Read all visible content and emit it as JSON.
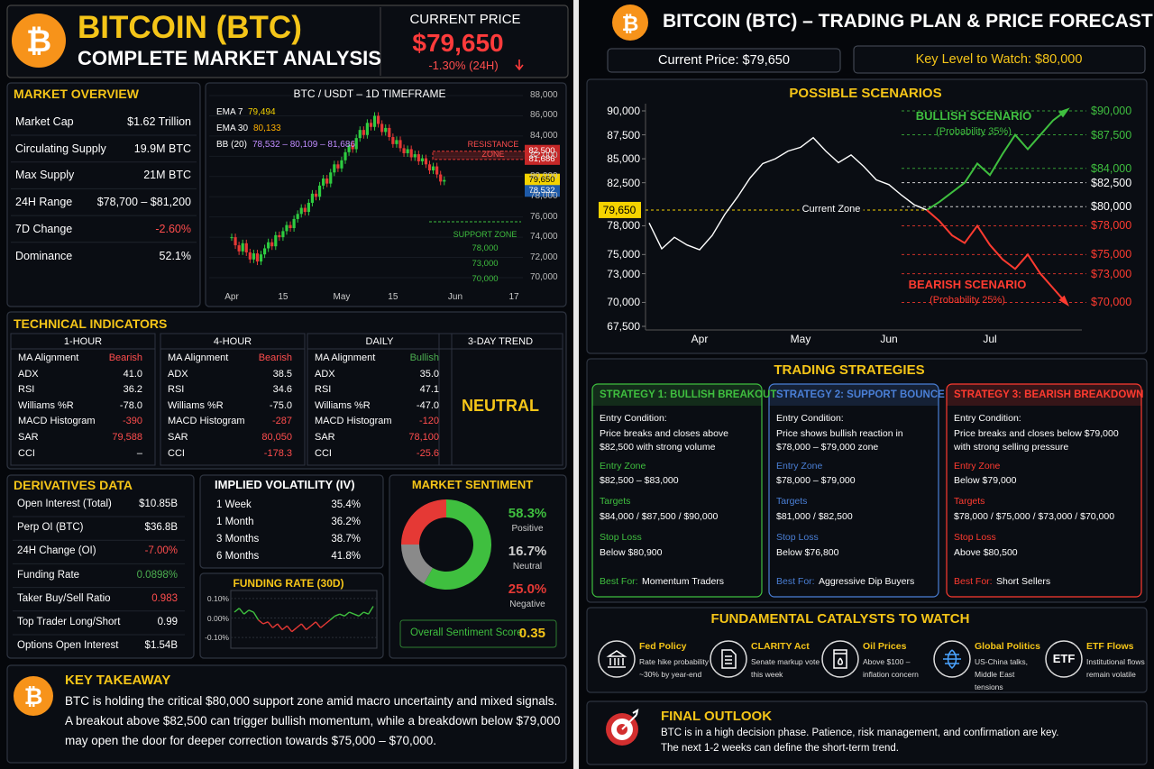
{
  "header": {
    "logo": "₿",
    "title": "BITCOIN (BTC)",
    "subtitle": "COMPLETE MARKET ANALYSIS",
    "price_label": "CURRENT PRICE",
    "price": "$79,650",
    "change": "-1.30% (24H)"
  },
  "market_overview": {
    "title": "MARKET OVERVIEW",
    "rows": [
      {
        "label": "Market Cap",
        "value": "$1.62 Trillion"
      },
      {
        "label": "Circulating Supply",
        "value": "19.9M BTC"
      },
      {
        "label": "Max Supply",
        "value": "21M BTC"
      },
      {
        "label": "24H Range",
        "value": "$78,700 – $81,200"
      },
      {
        "label": "7D Change",
        "value": "-2.60%",
        "color": "#ff4d4d"
      },
      {
        "label": "Dominance",
        "value": "52.1%"
      }
    ]
  },
  "price_chart": {
    "type": "candlestick",
    "title": "BTC / USDT – 1D TIMEFRAME",
    "legend": [
      {
        "label": "EMA 7",
        "value": "79,494",
        "color": "#f5d300"
      },
      {
        "label": "EMA 30",
        "value": "80,133",
        "color": "#ffb000"
      },
      {
        "label": "BB (20)",
        "value": "78,532 – 80,109 – 81,686",
        "color": "#c08cff"
      }
    ],
    "categories": [
      "Apr",
      null,
      null,
      null,
      null,
      null,
      null,
      null,
      null,
      null,
      null,
      null,
      null,
      null,
      "15",
      null,
      null,
      null,
      null,
      null,
      null,
      null,
      null,
      null,
      null,
      null,
      null,
      null,
      null,
      null,
      "May",
      null,
      null,
      null,
      null,
      null,
      null,
      null,
      null,
      null,
      null,
      null,
      null,
      null,
      "15",
      null,
      null,
      null,
      null,
      null,
      null,
      null,
      null,
      null,
      null,
      null,
      null,
      null,
      null,
      null,
      null,
      "Jun",
      null,
      null,
      null,
      null,
      null,
      null,
      null,
      null,
      null,
      null,
      null,
      null,
      null,
      null,
      null,
      "17"
    ],
    "values": [
      74000,
      73200,
      72600,
      73400,
      72500,
      71800,
      72400,
      71600,
      72300,
      72900,
      73500,
      73100,
      74200,
      74000,
      74600,
      75200,
      74900,
      75800,
      76300,
      76900,
      76500,
      77400,
      78300,
      78000,
      79100,
      79800,
      79300,
      80400,
      81200,
      80800,
      81600,
      82400,
      83100,
      82700,
      83800,
      84600,
      84100,
      85300,
      84900,
      86000,
      85200,
      84400,
      84800,
      83900,
      83200,
      83600,
      82800,
      82300,
      82700,
      81900,
      82200,
      81500,
      81800,
      81200,
      80600,
      81000,
      80200,
      79500,
      79650,
      null,
      null,
      null,
      null,
      null,
      null,
      null,
      null,
      null,
      null,
      null,
      null,
      null,
      null,
      null,
      null,
      null,
      null,
      null
    ],
    "ylim": [
      70000,
      88000
    ],
    "yticks": [
      {
        "value": 88000,
        "label": "88,000"
      },
      {
        "value": 86000,
        "label": "86,000"
      },
      {
        "value": 84000,
        "label": "84,000"
      },
      {
        "value": 82000,
        "label": "82,000"
      },
      {
        "value": 80000,
        "label": "80,000"
      },
      {
        "value": 78000,
        "label": "78,000"
      },
      {
        "value": 76000,
        "label": "76,000"
      },
      {
        "value": 74000,
        "label": "74,000"
      },
      {
        "value": 72000,
        "label": "72,000"
      },
      {
        "value": 70000,
        "label": "70,000"
      }
    ],
    "price_tags": [
      {
        "value": 82500,
        "label": "82,500",
        "color": "#c62828"
      },
      {
        "value": 81686,
        "label": "81,686",
        "color": "#c62828"
      },
      {
        "value": 79650,
        "label": "79,650",
        "color": "#f5d300"
      },
      {
        "value": 78532,
        "label": "78,532",
        "color": "#1e5aa8"
      }
    ],
    "resistance_label": "RESISTANCE ZONE",
    "support_label": "SUPPORT ZONE",
    "support_levels": [
      "78,000",
      "73,000",
      "70,000"
    ]
  },
  "technical_indicators": {
    "title": "TECHNICAL INDICATORS",
    "columns": [
      {
        "title": "1-HOUR",
        "rows": [
          {
            "label": "MA Alignment",
            "value": "Bearish",
            "color": "#ff4d4d"
          },
          {
            "label": "ADX",
            "value": "41.0"
          },
          {
            "label": "RSI",
            "value": "36.2"
          },
          {
            "label": "Williams %R",
            "value": "-78.0"
          },
          {
            "label": "MACD Histogram",
            "value": "-390",
            "color": "#ff4d4d"
          },
          {
            "label": "SAR",
            "value": "79,588",
            "color": "#ff4d4d"
          },
          {
            "label": "CCI",
            "value": "–"
          }
        ]
      },
      {
        "title": "4-HOUR",
        "rows": [
          {
            "label": "MA Alignment",
            "value": "Bearish",
            "color": "#ff4d4d"
          },
          {
            "label": "ADX",
            "value": "38.5"
          },
          {
            "label": "RSI",
            "value": "34.6"
          },
          {
            "label": "Williams %R",
            "value": "-75.0"
          },
          {
            "label": "MACD Histogram",
            "value": "-287",
            "color": "#ff4d4d"
          },
          {
            "label": "SAR",
            "value": "80,050",
            "color": "#ff4d4d"
          },
          {
            "label": "CCI",
            "value": "-178.3",
            "color": "#ff4d4d"
          }
        ]
      },
      {
        "title": "DAILY",
        "rows": [
          {
            "label": "MA Alignment",
            "value": "Bullish",
            "color": "#4caf50"
          },
          {
            "label": "ADX",
            "value": "35.0"
          },
          {
            "label": "RSI",
            "value": "47.1"
          },
          {
            "label": "Williams %R",
            "value": "-47.0"
          },
          {
            "label": "MACD Histogram",
            "value": "-120",
            "color": "#ff4d4d"
          },
          {
            "label": "SAR",
            "value": "78,100",
            "color": "#ff4d4d"
          },
          {
            "label": "CCI",
            "value": "-25.6",
            "color": "#ff4d4d"
          }
        ]
      }
    ],
    "trend": {
      "title": "3-DAY TREND",
      "value": "NEUTRAL"
    }
  },
  "derivatives": {
    "title": "DERIVATIVES DATA",
    "rows": [
      {
        "label": "Open Interest (Total)",
        "value": "$10.85B"
      },
      {
        "label": "Perp OI (BTC)",
        "value": "$36.8B"
      },
      {
        "label": "24H Change (OI)",
        "value": "-7.00%",
        "color": "#ff4d4d"
      },
      {
        "label": "Funding Rate",
        "value": "0.0898%",
        "color": "#4caf50"
      },
      {
        "label": "Taker Buy/Sell Ratio",
        "value": "0.983",
        "color": "#ff4d4d"
      },
      {
        "label": "Top Trader Long/Short",
        "value": "0.99"
      },
      {
        "label": "Options Open Interest",
        "value": "$1.54B"
      }
    ]
  },
  "implied_volatility": {
    "title": "IMPLIED VOLATILITY (IV)",
    "rows": [
      {
        "label": "1 Week",
        "value": "35.4%"
      },
      {
        "label": "1 Month",
        "value": "36.2%"
      },
      {
        "label": "3 Months",
        "value": "38.7%"
      },
      {
        "label": "6 Months",
        "value": "41.8%"
      }
    ]
  },
  "funding_chart": {
    "type": "line",
    "title": "FUNDING RATE (30D)",
    "values": [
      0.03,
      0.05,
      0.02,
      0.04,
      0.03,
      -0.01,
      -0.03,
      -0.02,
      -0.05,
      -0.03,
      -0.06,
      -0.04,
      -0.07,
      -0.05,
      -0.03,
      -0.06,
      -0.04,
      -0.02,
      -0.05,
      -0.03,
      -0.01,
      0.01,
      0.02,
      0.01,
      0.03,
      0.02,
      0.01,
      0.03,
      0.02,
      0.06
    ],
    "ylim": [
      -0.15,
      0.15
    ],
    "yticks": [
      {
        "value": 0.1,
        "label": "0.10%"
      },
      {
        "value": 0,
        "label": "0.00%"
      },
      {
        "value": -0.1,
        "label": "-0.10%"
      }
    ],
    "colors": {
      "positive": "#3fbf3f",
      "negative": "#e53935"
    }
  },
  "sentiment": {
    "type": "pie",
    "title": "MARKET SENTIMENT",
    "categories": [
      "Positive",
      "Neutral",
      "Negative"
    ],
    "values": [
      58.3,
      16.7,
      25.0
    ],
    "value_labels": [
      "58.3%",
      "16.7%",
      "25.0%"
    ],
    "colors": [
      "#3fbf3f",
      "#8a8a8a",
      "#e53935"
    ],
    "score_label": "Overall Sentiment Score",
    "score": "0.35"
  },
  "key_takeaway": {
    "logo": "₿",
    "title": "KEY TAKEAWAY",
    "lines": [
      "BTC is holding the critical $80,000 support zone amid macro uncertainty and mixed signals.",
      "A breakout above $82,500 can trigger bullish momentum, while a breakdown below $79,000",
      "may open the door for deeper correction towards $75,000 – $70,000."
    ]
  },
  "plan_header": {
    "logo": "₿",
    "title": "BITCOIN (BTC) – TRADING PLAN & PRICE FORECAST",
    "current_price": "Current Price: $79,650",
    "key_level": "Key Level to Watch: $80,000"
  },
  "chart_data": {
    "type": "line",
    "title": "POSSIBLE SCENARIOS",
    "categories": [
      null,
      null,
      null,
      null,
      "Apr",
      null,
      null,
      null,
      null,
      null,
      null,
      null,
      "May",
      null,
      null,
      null,
      null,
      null,
      null,
      "Jun",
      null,
      null,
      null,
      null,
      null,
      null,
      null,
      "Jul",
      null,
      null,
      null,
      null,
      null,
      null
    ],
    "series": [
      {
        "color": "#ffffff",
        "values": [
          78300,
          75600,
          76800,
          76000,
          75500,
          77000,
          79200,
          81000,
          83000,
          84500,
          85000,
          85800,
          86200,
          87200,
          85800,
          84600,
          85400,
          84200,
          82800,
          82300,
          81200,
          80200,
          79650,
          null,
          null,
          null,
          null,
          null,
          null,
          null,
          null,
          null,
          null,
          null
        ]
      },
      {
        "name": "BULLISH SCENARIO",
        "probability": "(Probability 35%)",
        "color": "#3fbf3f",
        "values": [
          null,
          null,
          null,
          null,
          null,
          null,
          null,
          null,
          null,
          null,
          null,
          null,
          null,
          null,
          null,
          null,
          null,
          null,
          null,
          null,
          null,
          null,
          79650,
          80500,
          81500,
          82500,
          84500,
          83300,
          85500,
          87500,
          86000,
          87500,
          89000,
          90000
        ]
      },
      {
        "name": "BEARISH SCENARIO",
        "probability": "(Probability 25%)",
        "color": "#ff3b30",
        "values": [
          null,
          null,
          null,
          null,
          null,
          null,
          null,
          null,
          null,
          null,
          null,
          null,
          null,
          null,
          null,
          null,
          null,
          null,
          null,
          null,
          null,
          null,
          79650,
          78500,
          77000,
          76200,
          78000,
          76000,
          74500,
          73500,
          75000,
          73000,
          71500,
          70000
        ]
      }
    ],
    "ylim": [
      67500,
      90000
    ],
    "yticks": [
      {
        "value": 90000,
        "label": "90,000"
      },
      {
        "value": 87500,
        "label": "87,500"
      },
      {
        "value": 85000,
        "label": "85,000"
      },
      {
        "value": 82500,
        "label": "82,500"
      },
      {
        "value": 78000,
        "label": "78,000"
      },
      {
        "value": 75000,
        "label": "75,000"
      },
      {
        "value": 73000,
        "label": "73,000"
      },
      {
        "value": 70000,
        "label": "70,000"
      },
      {
        "value": 67500,
        "label": "67,500"
      }
    ],
    "current": {
      "value": 79650,
      "label": "79,650",
      "text": "Current Zone",
      "color": "#f5d300"
    },
    "levels": [
      {
        "value": 90000,
        "label": "$90,000",
        "color": "#3fbf3f"
      },
      {
        "value": 87500,
        "label": "$87,500",
        "color": "#3fbf3f"
      },
      {
        "value": 84000,
        "label": "$84,000",
        "color": "#3fbf3f"
      },
      {
        "value": 82500,
        "label": "$82,500",
        "color": "#ffffff"
      },
      {
        "value": 80000,
        "label": "$80,000",
        "color": "#ffffff"
      },
      {
        "value": 78000,
        "label": "$78,000",
        "color": "#ff3b30"
      },
      {
        "value": 75000,
        "label": "$75,000",
        "color": "#ff3b30"
      },
      {
        "value": 73000,
        "label": "$73,000",
        "color": "#ff3b30"
      },
      {
        "value": 70000,
        "label": "$70,000",
        "color": "#ff3b30"
      }
    ]
  },
  "strategies": {
    "title": "TRADING STRATEGIES",
    "cards": [
      {
        "title": "STRATEGY 1: BULLISH BREAKOUT",
        "color": "#3fbf3f",
        "entry_label": "Entry Condition:",
        "entry": "Price breaks and closes above $82,500 with strong volume",
        "zone_label": "Entry Zone",
        "zone": "$82,500 – $83,000",
        "targets_label": "Targets",
        "targets": "$84,000 / $87,500 / $90,000",
        "stop_label": "Stop Loss",
        "stop": "Below $80,900",
        "best_label": "Best For:",
        "best": "Momentum Traders"
      },
      {
        "title": "STRATEGY 2: SUPPORT BOUNCE",
        "color": "#4a7fd6",
        "entry_label": "Entry Condition:",
        "entry": "Price shows bullish reaction in $78,000 – $79,000 zone",
        "zone_label": "Entry Zone",
        "zone": "$78,000 – $79,000",
        "targets_label": "Targets",
        "targets": "$81,000 / $82,500",
        "stop_label": "Stop Loss",
        "stop": "Below $76,800",
        "best_label": "Best For:",
        "best": "Aggressive Dip Buyers"
      },
      {
        "title": "STRATEGY 3: BEARISH BREAKDOWN",
        "color": "#ff3b30",
        "entry_label": "Entry Condition:",
        "entry": "Price breaks and closes below $79,000 with strong selling pressure",
        "zone_label": "Entry Zone",
        "zone": "Below $79,000",
        "targets_label": "Targets",
        "targets": "$78,000 / $75,000 / $73,000 / $70,000",
        "stop_label": "Stop Loss",
        "stop": "Above $80,500",
        "best_label": "Best For:",
        "best": "Short Sellers"
      }
    ]
  },
  "catalysts": {
    "title": "FUNDAMENTAL CATALYSTS TO WATCH",
    "items": [
      {
        "title": "Fed Policy",
        "text": "Rate hike probability ~30% by year-end"
      },
      {
        "title": "CLARITY Act",
        "text": "Senate markup vote this week"
      },
      {
        "title": "Oil Prices",
        "text": "Above $100 – inflation concern"
      },
      {
        "title": "Global Politics",
        "text": "US-China talks, Middle East tensions"
      },
      {
        "title": "ETF Flows",
        "text": "Institutional flows remain volatile",
        "icon_text": "ETF"
      }
    ]
  },
  "final_outlook": {
    "title": "FINAL OUTLOOK",
    "lines": [
      "BTC is in a high decision phase. Patience, risk management, and confirmation are key.",
      "The next 1-2 weeks can define the short-term trend."
    ]
  }
}
